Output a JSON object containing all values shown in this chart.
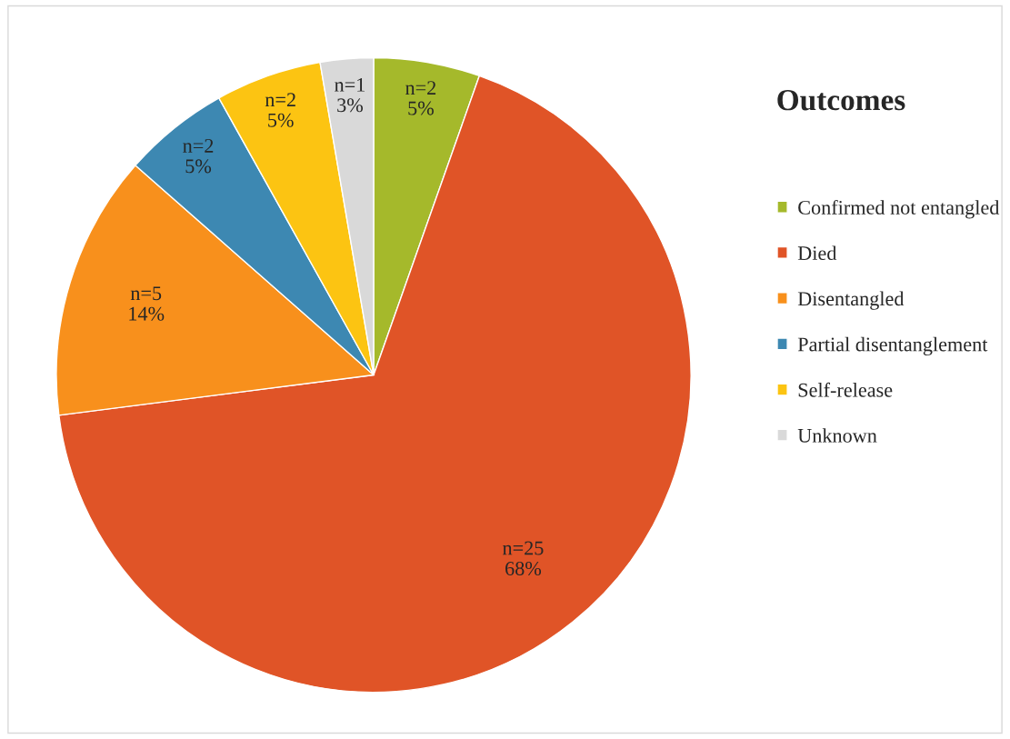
{
  "chart_data": {
    "type": "pie",
    "legend_title": "Outcomes",
    "legend": "right",
    "categories": [
      "Confirmed not entangled",
      "Died",
      "Disentangled",
      "Partial disentanglement",
      "Self-release",
      "Unknown"
    ],
    "values": [
      2,
      25,
      5,
      2,
      2,
      1
    ],
    "colors": [
      "#a5b92b",
      "#e05427",
      "#f8901c",
      "#3d88b2",
      "#fcc412",
      "#d9d9d9"
    ],
    "value_labels": [
      "n=2\n5%",
      "n=25\n68%",
      "n=5\n14%",
      "n=2\n5%",
      "n=2\n5%",
      "n=1\n3%"
    ]
  }
}
